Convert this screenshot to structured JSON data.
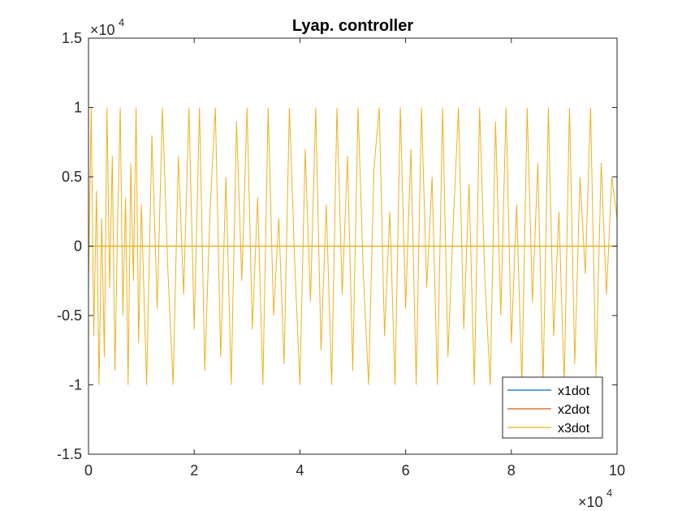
{
  "chart_data": {
    "type": "line",
    "title": "Lyap. controller",
    "xlabel": "",
    "ylabel": "",
    "xlim": [
      0,
      100000
    ],
    "ylim": [
      -15000,
      15000
    ],
    "x_ticks": [
      0,
      20000,
      40000,
      60000,
      80000,
      100000
    ],
    "y_ticks": [
      -15000,
      -10000,
      -5000,
      0,
      5000,
      10000,
      15000
    ],
    "x_tick_labels": [
      "0",
      "2",
      "4",
      "6",
      "8",
      "10"
    ],
    "y_tick_labels": [
      "-1.5",
      "-1",
      "-0.5",
      "0",
      "0.5",
      "1",
      "1.5"
    ],
    "x_exponent": {
      "base": "×10",
      "power": "4"
    },
    "y_exponent": {
      "base": "×10",
      "power": "4"
    },
    "grid": false,
    "legend_placement": "bottom-right",
    "series": [
      {
        "name": "x1dot",
        "color": "#0072BD",
        "baseline": 0
      },
      {
        "name": "x2dot",
        "color": "#D95319",
        "baseline": 0
      },
      {
        "name": "x3dot",
        "color": "#EDB120",
        "x": [
          0,
          500,
          1000,
          1500,
          2000,
          2500,
          3000,
          3500,
          4000,
          4500,
          5000,
          5500,
          6000,
          6500,
          7000,
          7500,
          8000,
          8500,
          9000,
          9500,
          10000,
          11000,
          12000,
          13000,
          14000,
          15000,
          16000,
          17000,
          18000,
          19000,
          20000,
          21000,
          22000,
          23000,
          24000,
          25000,
          26000,
          27000,
          28000,
          29000,
          30000,
          31000,
          32000,
          33000,
          34000,
          35000,
          36000,
          37000,
          38000,
          39000,
          40000,
          41000,
          42000,
          43000,
          44000,
          45000,
          46000,
          47000,
          48000,
          49000,
          50000,
          51000,
          52000,
          53000,
          54000,
          55000,
          56000,
          57000,
          58000,
          59000,
          60000,
          61000,
          62000,
          63000,
          64000,
          65000,
          66000,
          67000,
          68000,
          69000,
          70000,
          71000,
          72000,
          73000,
          74000,
          75000,
          76000,
          77000,
          78000,
          79000,
          80000,
          81000,
          82000,
          83000,
          84000,
          85000,
          86000,
          87000,
          88000,
          89000,
          90000,
          91000,
          92000,
          93000,
          94000,
          95000,
          96000,
          97000,
          98000,
          99000,
          100000
        ],
        "values": [
          -3000,
          10000,
          -6500,
          4000,
          -10000,
          2000,
          -8000,
          10000,
          -3000,
          6500,
          -9000,
          1500,
          10000,
          -5000,
          3500,
          -10000,
          6000,
          -2500,
          10000,
          -7000,
          3000,
          -10000,
          8000,
          -4500,
          10000,
          -1500,
          -10000,
          6500,
          -3500,
          10000,
          -6000,
          10000,
          -9000,
          2500,
          10000,
          -8000,
          5000,
          -10000,
          9000,
          -2500,
          10000,
          -6000,
          3500,
          -10000,
          10000,
          -5000,
          2000,
          -8500,
          10000,
          -1000,
          -10000,
          7000,
          -4000,
          10000,
          -7500,
          3000,
          -10000,
          10000,
          -3500,
          6500,
          -9000,
          10000,
          -2000,
          -10000,
          5500,
          10000,
          -6500,
          2500,
          -10000,
          10000,
          -4500,
          7000,
          -10000,
          10000,
          -3000,
          5000,
          -10000,
          10000,
          -8000,
          1500,
          10000,
          -6000,
          4500,
          -10000,
          10000,
          -2500,
          -10000,
          9000,
          -5000,
          10000,
          -7000,
          3000,
          -10000,
          10000,
          -4000,
          6000,
          -10000,
          10000,
          -6500,
          2500,
          -10000,
          10000,
          -8500,
          5000,
          -2000,
          10000,
          -9500,
          6000,
          -3500,
          5000,
          2000
        ]
      }
    ]
  }
}
